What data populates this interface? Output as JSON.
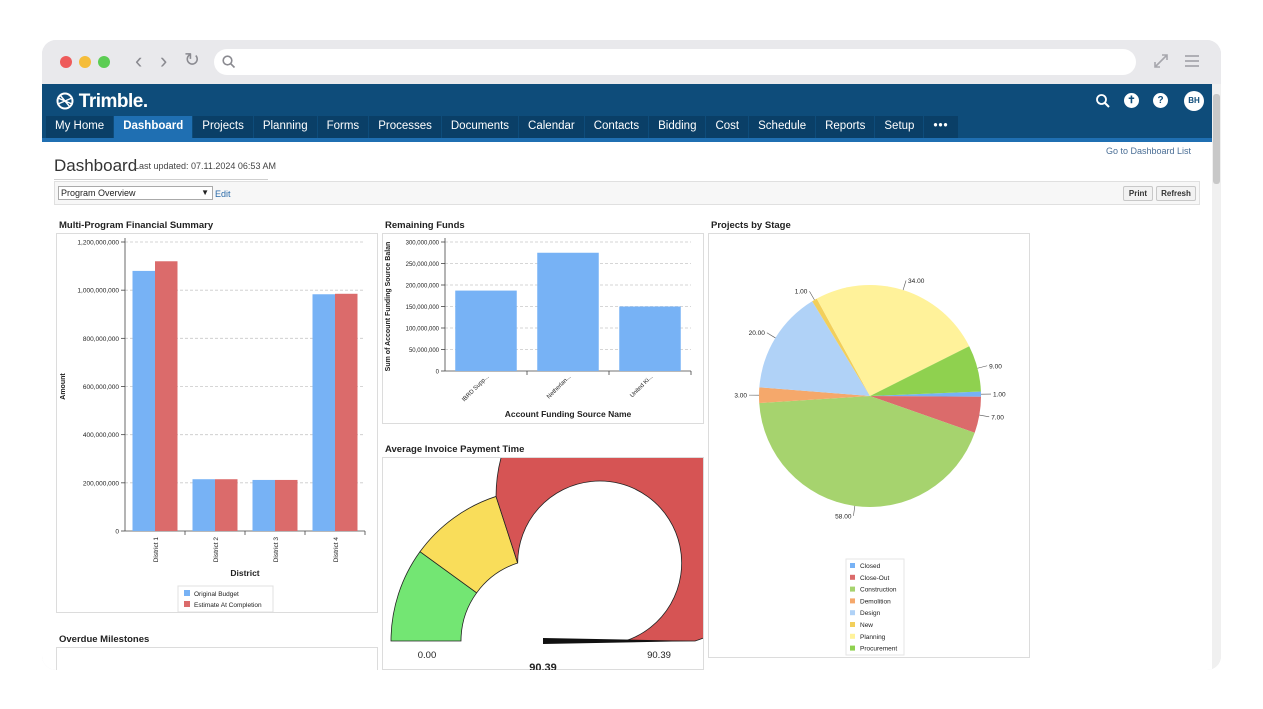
{
  "browser": {
    "traffic_lights": [
      "#ee5b5b",
      "#f5bd3a",
      "#5ccd54"
    ],
    "nav_back": "‹",
    "nav_forward": "›",
    "nav_reload": "↻"
  },
  "app": {
    "logo": "Trimble.",
    "tabs": [
      "My Home",
      "Dashboard",
      "Projects",
      "Planning",
      "Forms",
      "Processes",
      "Documents",
      "Calendar",
      "Contacts",
      "Bidding",
      "Cost",
      "Schedule",
      "Reports",
      "Setup",
      "•••"
    ],
    "active_tab": "Dashboard",
    "header_icons": [
      "search-icon",
      "accessibility-icon",
      "help-icon"
    ],
    "avatar_initials": "BH"
  },
  "page": {
    "title": "Dashboard",
    "last_updated": "Last updated: 07.11.2024 06:53 AM",
    "go_to_list": "Go to Dashboard List",
    "dashboard_select": "Program Overview",
    "edit_label": "Edit",
    "print_label": "Print",
    "refresh_label": "Refresh"
  },
  "panels": {
    "financial_title": "Multi-Program Financial Summary",
    "remaining_title": "Remaining Funds",
    "invoice_title": "Average Invoice Payment Time",
    "stage_title": "Projects by Stage",
    "milestones_title": "Overdue Milestones"
  },
  "chart_data": [
    {
      "type": "bar",
      "title": "Multi-Program Financial Summary",
      "xlabel": "District",
      "ylabel": "Amount",
      "categories": [
        "District 1",
        "District 2",
        "District 3",
        "District 4"
      ],
      "series": [
        {
          "name": "Original Budget",
          "color": "#77b2f5",
          "values": [
            1080000000,
            215000000,
            212000000,
            983000000
          ]
        },
        {
          "name": "Estimate At Completion",
          "color": "#db6b6b",
          "values": [
            1120000000,
            215000000,
            212000000,
            985000000
          ]
        }
      ],
      "ylim": [
        0,
        1200000000
      ],
      "yticks": [
        "0",
        "200,000,000",
        "400,000,000",
        "600,000,000",
        "800,000,000",
        "1,000,000,000",
        "1,200,000,000"
      ],
      "ytick_values": [
        0,
        200000000,
        400000000,
        600000000,
        800000000,
        1000000000,
        1200000000
      ],
      "grid": true,
      "legend": "bottom"
    },
    {
      "type": "bar",
      "title": "Remaining Funds",
      "xlabel": "Account Funding Source Name",
      "ylabel": "Sum  of Account Funding Source Balan",
      "categories": [
        "IBRD Supp...",
        "Netherlan...",
        "United Ki..."
      ],
      "series": [
        {
          "color": "#77b2f5",
          "values": [
            187000000,
            275000000,
            150000000
          ]
        }
      ],
      "ylim": [
        0,
        300000000
      ],
      "yticks": [
        "0",
        "50,000,000",
        "100,000,000",
        "150,000,000",
        "200,000,000",
        "250,000,000",
        "300,000,000"
      ],
      "ytick_values": [
        0,
        50000000,
        100000000,
        150000000,
        200000000,
        250000000,
        300000000
      ],
      "grid": true
    },
    {
      "type": "gauge",
      "title": "Average Invoice Payment Time",
      "min": 0,
      "max": 90.39,
      "min_label": "0.00",
      "max_label": "90.39",
      "value": 90.39,
      "value_label": "90.39",
      "bands": [
        {
          "from": 0,
          "to": 0.2,
          "color": "#73e673"
        },
        {
          "from": 0.2,
          "to": 0.4,
          "color": "#f9dd5a"
        },
        {
          "from": 0.4,
          "to": 1.0,
          "color": "#d65454"
        }
      ]
    },
    {
      "type": "pie",
      "title": "Projects by Stage",
      "legend": "bottom",
      "slices": [
        {
          "name": "Closed",
          "value": 1.0,
          "label": "1.00",
          "color": "#77b2f5"
        },
        {
          "name": "Close-Out",
          "value": 7.0,
          "label": "7.00",
          "color": "#db6b6b"
        },
        {
          "name": "Construction",
          "value": 58.0,
          "label": "58.00",
          "color": "#a6d36e"
        },
        {
          "name": "Demolition",
          "value": 3.0,
          "label": "3.00",
          "color": "#f5a86b"
        },
        {
          "name": "Design",
          "value": 20.0,
          "label": "20.00",
          "color": "#b0d2f7"
        },
        {
          "name": "New",
          "value": 1.0,
          "label": "1.00",
          "color": "#f2cf5b"
        },
        {
          "name": "Planning",
          "value": 34.0,
          "label": "34.00",
          "color": "#fff29a"
        },
        {
          "name": "Procurement",
          "value": 9.0,
          "label": "9.00",
          "color": "#8fd14f"
        }
      ]
    }
  ]
}
